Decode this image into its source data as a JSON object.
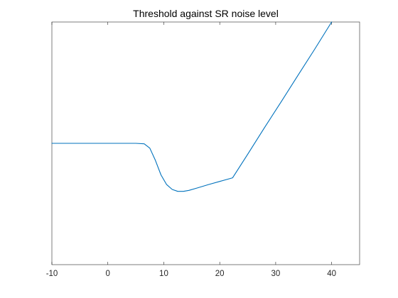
{
  "chart_data": {
    "type": "line",
    "title": "Threshold against SR noise level",
    "xlabel": "",
    "ylabel": "",
    "xlim": [
      -10,
      45
    ],
    "ylim": [
      0,
      1
    ],
    "x_ticks": [
      -10,
      0,
      10,
      20,
      30,
      40
    ],
    "x_tick_labels": [
      "-10",
      "0",
      "10",
      "20",
      "30",
      "40"
    ],
    "y_ticks": [],
    "grid": false,
    "series": [
      {
        "color": "#0072BD",
        "points": [
          [
            -10,
            0.5
          ],
          [
            -5,
            0.5
          ],
          [
            0,
            0.5
          ],
          [
            5,
            0.5
          ],
          [
            6.5,
            0.498
          ],
          [
            7.5,
            0.48
          ],
          [
            8.5,
            0.43
          ],
          [
            9.5,
            0.37
          ],
          [
            10.5,
            0.33
          ],
          [
            11.5,
            0.31
          ],
          [
            12.5,
            0.302
          ],
          [
            13.5,
            0.302
          ],
          [
            14.5,
            0.306
          ],
          [
            16,
            0.316
          ],
          [
            18,
            0.33
          ],
          [
            20,
            0.343
          ],
          [
            22.3,
            0.358
          ],
          [
            25,
            0.455
          ],
          [
            28,
            0.565
          ],
          [
            31,
            0.672
          ],
          [
            34,
            0.781
          ],
          [
            37,
            0.889
          ],
          [
            40,
            1.0
          ]
        ]
      }
    ]
  }
}
